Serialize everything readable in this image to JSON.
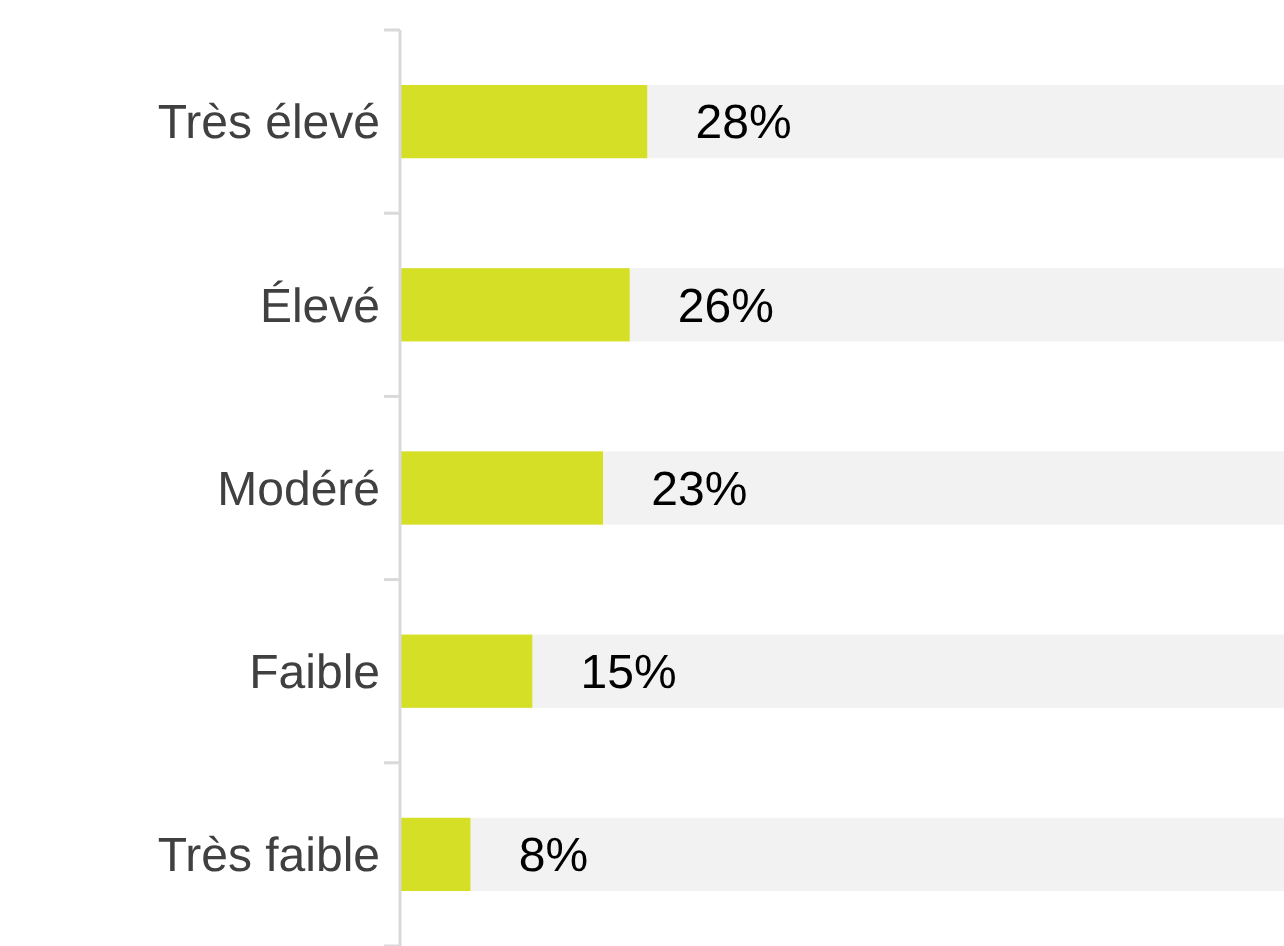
{
  "chart_data": {
    "type": "bar",
    "orientation": "horizontal",
    "stacked": true,
    "categories": [
      "Très élevé",
      "Élevé",
      "Modéré",
      "Faible",
      "Très faible"
    ],
    "xlim": [
      0,
      100
    ],
    "tick_labels": "y",
    "series": [
      {
        "color": "#d4df26",
        "values": [
          28,
          26,
          23,
          15,
          8
        ],
        "value_labels": [
          "28%",
          "26%",
          "23%",
          "15%",
          "8%"
        ]
      },
      {
        "color": "#f2f2f2",
        "values": [
          72,
          74,
          77,
          85,
          92
        ]
      }
    ]
  }
}
